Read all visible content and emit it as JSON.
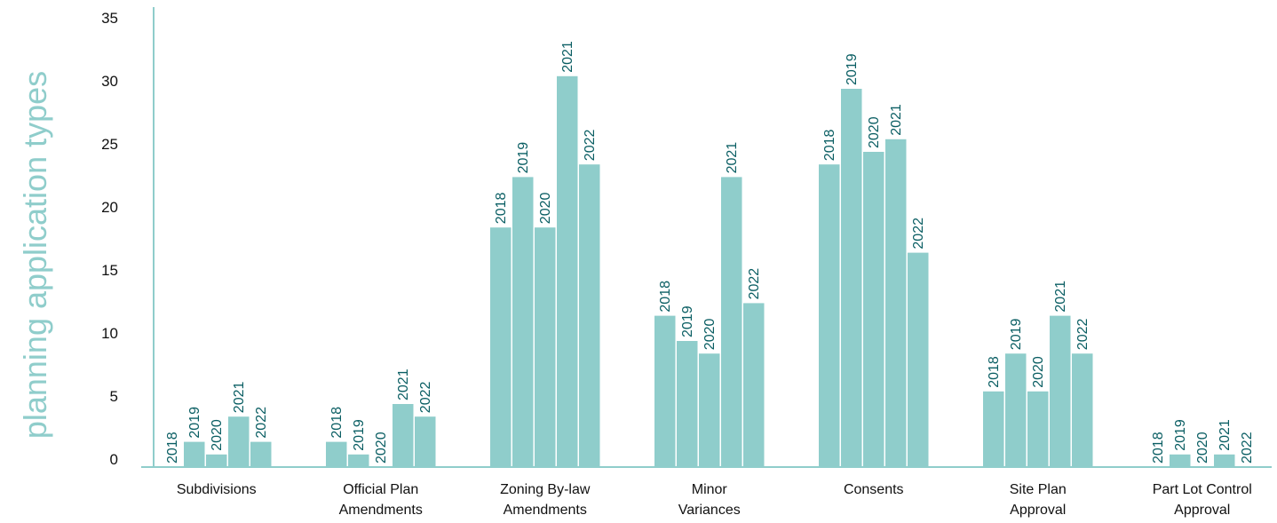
{
  "chart_data": {
    "type": "bar",
    "ylabel": "planning application types",
    "xlabel": "",
    "ylim": [
      0,
      35
    ],
    "yticks": [
      0,
      5,
      10,
      15,
      20,
      25,
      30,
      35
    ],
    "grid": false,
    "legend": "none",
    "categories": [
      [
        "Subdivisions"
      ],
      [
        "Official Plan",
        "Amendments"
      ],
      [
        "Zoning By-law",
        "Amendments"
      ],
      [
        "Minor",
        "Variances"
      ],
      [
        "Consents"
      ],
      [
        "Site Plan",
        "Approval"
      ],
      [
        "Part Lot Control",
        "Approval"
      ]
    ],
    "series": [
      {
        "name": "2018",
        "values": [
          0,
          2,
          19,
          12,
          24,
          6,
          0
        ]
      },
      {
        "name": "2019",
        "values": [
          2,
          1,
          23,
          10,
          30,
          9,
          1
        ]
      },
      {
        "name": "2020",
        "values": [
          1,
          0,
          19,
          9,
          25,
          6,
          0
        ]
      },
      {
        "name": "2021",
        "values": [
          4,
          5,
          31,
          23,
          26,
          12,
          1
        ]
      },
      {
        "name": "2022",
        "values": [
          2,
          4,
          24,
          13,
          17,
          9,
          0
        ]
      }
    ]
  },
  "colors": {
    "bar": "#8fcdcb",
    "axis": "#8fcdcb",
    "year_label": "#0a5e63",
    "ylabel": "#8fcdcb"
  }
}
